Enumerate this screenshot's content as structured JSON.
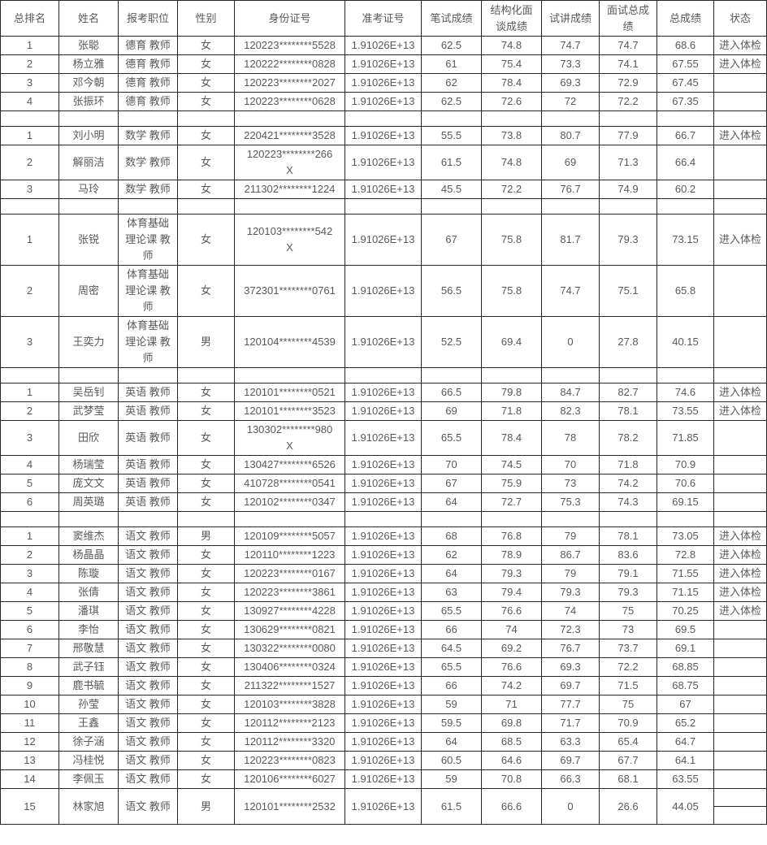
{
  "colors": {
    "background": "#ffffff",
    "grid_border": "#262626",
    "text": "#595959"
  },
  "table": {
    "headers": [
      "总排名",
      "姓名",
      "报考职位",
      "性别",
      "身份证号",
      "准考证号",
      "笔试成绩",
      "结构化面\n谈成绩",
      "试讲成绩",
      "面试总成\n绩",
      "总成绩",
      "状态"
    ],
    "rows": [
      {
        "cells": [
          "1",
          "张聪",
          "德育 教师",
          "女",
          "120223********5528",
          "1.91026E+13",
          "62.5",
          "74.8",
          "74.7",
          "74.7",
          "68.6",
          "进入体检"
        ]
      },
      {
        "cells": [
          "2",
          "杨立雅",
          "德育 教师",
          "女",
          "120222********0828",
          "1.91026E+13",
          "61",
          "75.4",
          "73.3",
          "74.1",
          "67.55",
          "进入体检"
        ]
      },
      {
        "cells": [
          "3",
          "邓今朝",
          "德育 教师",
          "女",
          "120223********2027",
          "1.91026E+13",
          "62",
          "78.4",
          "69.3",
          "72.9",
          "67.45",
          ""
        ]
      },
      {
        "cells": [
          "4",
          "张振环",
          "德育 教师",
          "女",
          "120223********0628",
          "1.91026E+13",
          "62.5",
          "72.6",
          "72",
          "72.2",
          "67.35",
          ""
        ]
      },
      {
        "separator": true
      },
      {
        "cells": [
          "1",
          "刘小明",
          "数学 教师",
          "女",
          "220421********3528",
          "1.91026E+13",
          "55.5",
          "73.8",
          "80.7",
          "77.9",
          "66.7",
          "进入体检"
        ]
      },
      {
        "cells": [
          "2",
          "解丽洁",
          "数学 教师",
          "女",
          "120223********266\nX",
          "1.91026E+13",
          "61.5",
          "74.8",
          "69",
          "71.3",
          "66.4",
          ""
        ]
      },
      {
        "cells": [
          "3",
          "马玲",
          "数学 教师",
          "女",
          "211302********1224",
          "1.91026E+13",
          "45.5",
          "72.2",
          "76.7",
          "74.9",
          "60.2",
          ""
        ]
      },
      {
        "separator": true
      },
      {
        "cells": [
          "1",
          "张锐",
          "体育基础\n理论课 教\n师",
          "女",
          "120103********542\nX",
          "1.91026E+13",
          "67",
          "75.8",
          "81.7",
          "79.3",
          "73.15",
          "进入体检"
        ]
      },
      {
        "cells": [
          "2",
          "周密",
          "体育基础\n理论课 教\n师",
          "女",
          "372301********0761",
          "1.91026E+13",
          "56.5",
          "75.8",
          "74.7",
          "75.1",
          "65.8",
          ""
        ]
      },
      {
        "cells": [
          "3",
          "王奕力",
          "体育基础\n理论课 教\n师",
          "男",
          "120104********4539",
          "1.91026E+13",
          "52.5",
          "69.4",
          "0",
          "27.8",
          "40.15",
          ""
        ]
      },
      {
        "separator": true
      },
      {
        "cells": [
          "1",
          "吴岳钊",
          "英语 教师",
          "女",
          "120101********0521",
          "1.91026E+13",
          "66.5",
          "79.8",
          "84.7",
          "82.7",
          "74.6",
          "进入体检"
        ]
      },
      {
        "cells": [
          "2",
          "武梦莹",
          "英语 教师",
          "女",
          "120101********3523",
          "1.91026E+13",
          "69",
          "71.8",
          "82.3",
          "78.1",
          "73.55",
          "进入体检"
        ]
      },
      {
        "cells": [
          "3",
          "田欣",
          "英语 教师",
          "女",
          "130302********980\nX",
          "1.91026E+13",
          "65.5",
          "78.4",
          "78",
          "78.2",
          "71.85",
          ""
        ]
      },
      {
        "cells": [
          "4",
          "杨瑞莹",
          "英语 教师",
          "女",
          "130427********6526",
          "1.91026E+13",
          "70",
          "74.5",
          "70",
          "71.8",
          "70.9",
          ""
        ]
      },
      {
        "cells": [
          "5",
          "庞文文",
          "英语 教师",
          "女",
          "410728********0541",
          "1.91026E+13",
          "67",
          "75.9",
          "73",
          "74.2",
          "70.6",
          ""
        ]
      },
      {
        "cells": [
          "6",
          "周英璐",
          "英语 教师",
          "女",
          "120102********0347",
          "1.91026E+13",
          "64",
          "72.7",
          "75.3",
          "74.3",
          "69.15",
          ""
        ]
      },
      {
        "separator": true
      },
      {
        "cells": [
          "1",
          "窦维杰",
          "语文 教师",
          "男",
          "120109********5057",
          "1.91026E+13",
          "68",
          "76.8",
          "79",
          "78.1",
          "73.05",
          "进入体检"
        ]
      },
      {
        "cells": [
          "2",
          "杨晶晶",
          "语文 教师",
          "女",
          "120110********1223",
          "1.91026E+13",
          "62",
          "78.9",
          "86.7",
          "83.6",
          "72.8",
          "进入体检"
        ]
      },
      {
        "cells": [
          "3",
          "陈璇",
          "语文 教师",
          "女",
          "120223********0167",
          "1.91026E+13",
          "64",
          "79.3",
          "79",
          "79.1",
          "71.55",
          "进入体检"
        ]
      },
      {
        "cells": [
          "4",
          "张倩",
          "语文 教师",
          "女",
          "120223********3861",
          "1.91026E+13",
          "63",
          "79.4",
          "79.3",
          "79.3",
          "71.15",
          "进入体检"
        ]
      },
      {
        "cells": [
          "5",
          "潘琪",
          "语文 教师",
          "女",
          "130927********4228",
          "1.91026E+13",
          "65.5",
          "76.6",
          "74",
          "75",
          "70.25",
          "进入体检"
        ]
      },
      {
        "cells": [
          "6",
          "李怡",
          "语文 教师",
          "女",
          "130629********0821",
          "1.91026E+13",
          "66",
          "74",
          "72.3",
          "73",
          "69.5",
          ""
        ]
      },
      {
        "cells": [
          "7",
          "邢敬慧",
          "语文 教师",
          "女",
          "130322********0080",
          "1.91026E+13",
          "64.5",
          "69.2",
          "76.7",
          "73.7",
          "69.1",
          ""
        ]
      },
      {
        "cells": [
          "8",
          "武子钰",
          "语文 教师",
          "女",
          "130406********0324",
          "1.91026E+13",
          "65.5",
          "76.6",
          "69.3",
          "72.2",
          "68.85",
          ""
        ]
      },
      {
        "cells": [
          "9",
          "鹿书毓",
          "语文 教师",
          "女",
          "211322********1527",
          "1.91026E+13",
          "66",
          "74.2",
          "69.7",
          "71.5",
          "68.75",
          ""
        ]
      },
      {
        "cells": [
          "10",
          "孙莹",
          "语文 教师",
          "女",
          "120103********3828",
          "1.91026E+13",
          "59",
          "71",
          "77.7",
          "75",
          "67",
          ""
        ]
      },
      {
        "cells": [
          "11",
          "王鑫",
          "语文 教师",
          "女",
          "120112********2123",
          "1.91026E+13",
          "59.5",
          "69.8",
          "71.7",
          "70.9",
          "65.2",
          ""
        ]
      },
      {
        "cells": [
          "12",
          "徐子涵",
          "语文 教师",
          "女",
          "120112********3320",
          "1.91026E+13",
          "64",
          "68.5",
          "63.3",
          "65.4",
          "64.7",
          ""
        ]
      },
      {
        "cells": [
          "13",
          "冯桂悦",
          "语文 教师",
          "女",
          "120223********0823",
          "1.91026E+13",
          "60.5",
          "64.6",
          "69.7",
          "67.7",
          "64.1",
          ""
        ]
      },
      {
        "cells": [
          "14",
          "李佩玉",
          "语文 教师",
          "女",
          "120106********6027",
          "1.91026E+13",
          "59",
          "70.8",
          "66.3",
          "68.1",
          "63.55",
          ""
        ]
      },
      {
        "cells": [
          "15",
          "林家旭",
          "语文 教师",
          "男",
          "120101********2532",
          "1.91026E+13",
          "61.5",
          "66.6",
          "0",
          "26.6",
          "44.05",
          ""
        ],
        "status_split": true
      }
    ]
  }
}
